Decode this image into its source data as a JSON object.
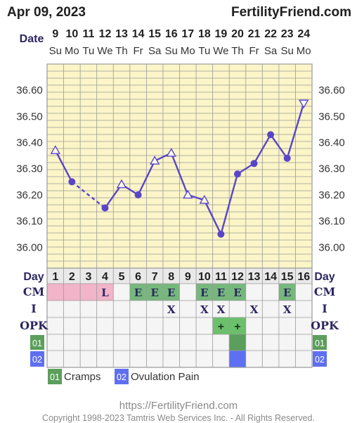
{
  "header": {
    "date_title": "Apr 09, 2023",
    "brand": "FertilityFriend.com"
  },
  "footer": {
    "url": "https://FertilityFriend.com",
    "copyright": "Copyright 1998-2023 Tamtris Web Services Inc. - All Rights Reserved."
  },
  "colors": {
    "background": "#fcf5c8",
    "grid": "#9a9a9a",
    "line": "#5a45c8",
    "cm_pink": "#f2b4c8",
    "cm_green": "#76b87c",
    "opk_green": "#6cc06c",
    "symptom_green": "#5c9e5c",
    "symptom_blue": "#5f6ff2",
    "table_bg": "#f5f5f5",
    "label_text": "#2a2660"
  },
  "chart_data": {
    "type": "line",
    "title": "",
    "xlabel": "",
    "ylabel": "",
    "row_label_date": "Date",
    "date_numbers": [
      "9",
      "10",
      "11",
      "12",
      "13",
      "14",
      "15",
      "16",
      "17",
      "18",
      "19",
      "20",
      "21",
      "22",
      "23",
      "24"
    ],
    "weekdays": [
      "Su",
      "Mo",
      "Tu",
      "We",
      "Th",
      "Fr",
      "Sa",
      "Su",
      "Mo",
      "Tu",
      "We",
      "Th",
      "Fr",
      "Sa",
      "Su",
      "Mo"
    ],
    "y_ticks": [
      "36.60",
      "36.50",
      "36.40",
      "36.30",
      "36.20",
      "36.10",
      "36.00"
    ],
    "ylim": [
      35.92,
      36.7
    ],
    "grid": true,
    "series": [
      {
        "values": [
          36.37,
          36.25,
          null,
          36.15,
          36.24,
          36.2,
          36.33,
          36.36,
          36.2,
          36.18,
          36.05,
          36.28,
          36.32,
          36.43,
          36.34,
          36.55
        ],
        "markers": [
          "open-up",
          "dot",
          "none",
          "dot",
          "open-up",
          "dot",
          "open-up",
          "open-up",
          "open-up",
          "open-up",
          "dot",
          "dot",
          "dot",
          "dot",
          "dot",
          "open-down"
        ],
        "segments": [
          "solid",
          "dashed",
          "dashed",
          "solid",
          "solid",
          "solid",
          "solid",
          "solid",
          "solid",
          "solid",
          "solid",
          "solid",
          "solid",
          "solid",
          "solid"
        ]
      }
    ],
    "table": {
      "day_label": "Day",
      "days": [
        "1",
        "2",
        "3",
        "4",
        "5",
        "6",
        "7",
        "8",
        "9",
        "10",
        "11",
        "12",
        "13",
        "14",
        "15",
        "16"
      ],
      "cm_label": "CM",
      "cm": [
        {
          "text": "",
          "fill": "pink"
        },
        {
          "text": "",
          "fill": "pink"
        },
        {
          "text": "",
          "fill": "pink"
        },
        {
          "text": "L",
          "fill": "pink"
        },
        {
          "text": "",
          "fill": ""
        },
        {
          "text": "E",
          "fill": "green"
        },
        {
          "text": "E",
          "fill": "green"
        },
        {
          "text": "E",
          "fill": "green"
        },
        {
          "text": "",
          "fill": ""
        },
        {
          "text": "E",
          "fill": "green"
        },
        {
          "text": "E",
          "fill": "green"
        },
        {
          "text": "E",
          "fill": "green"
        },
        {
          "text": "",
          "fill": ""
        },
        {
          "text": "",
          "fill": ""
        },
        {
          "text": "E",
          "fill": "green"
        },
        {
          "text": "",
          "fill": ""
        }
      ],
      "i_label": "I",
      "intercourse": [
        "",
        "",
        "",
        "",
        "",
        "",
        "",
        "X",
        "",
        "X",
        "X",
        "",
        "X",
        "",
        "X",
        ""
      ],
      "opk_label": "OPK",
      "opk": [
        "",
        "",
        "",
        "",
        "",
        "",
        "",
        "",
        "",
        "",
        "+",
        "+",
        "",
        "",
        "",
        ""
      ],
      "symptom_rows": [
        {
          "code": "01",
          "color": "green",
          "marked": [
            12
          ]
        },
        {
          "code": "02",
          "color": "blue",
          "marked": [
            12
          ]
        }
      ]
    },
    "legend": [
      {
        "code": "01",
        "label": "Cramps",
        "color": "green"
      },
      {
        "code": "02",
        "label": "Ovulation Pain",
        "color": "blue"
      }
    ]
  }
}
